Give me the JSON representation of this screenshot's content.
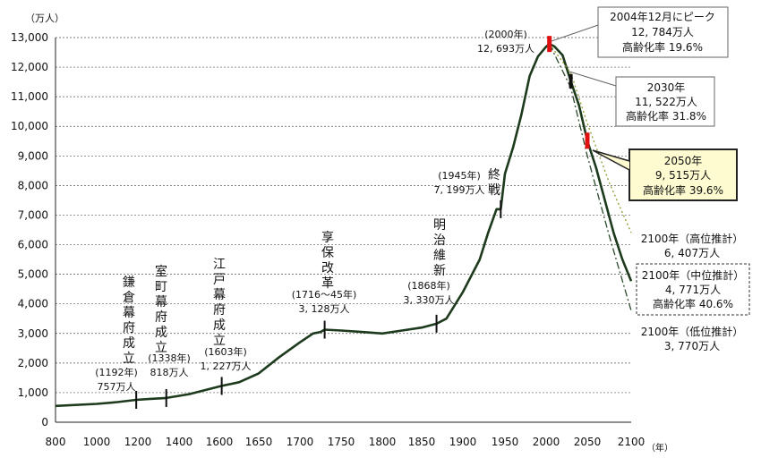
{
  "chart_data": {
    "type": "line",
    "y_unit": "（万人）",
    "x_unit": "（年）",
    "xlim": [
      800,
      2100
    ],
    "ylim": [
      0,
      13000
    ],
    "x_ticks": [
      "800",
      "1000",
      "1200",
      "1400",
      "1600",
      "1650",
      "1700",
      "1750",
      "1800",
      "1850",
      "1900",
      "1950",
      "2000",
      "2050",
      "2100"
    ],
    "y_ticks": [
      "0",
      "1,000",
      "2,000",
      "3,000",
      "4,000",
      "5,000",
      "6,000",
      "7,000",
      "8,000",
      "9,000",
      "10,000",
      "11,000",
      "12,000",
      "13,000"
    ],
    "grid": "horizontal dashed",
    "series": [
      {
        "name": "",
        "style": "solid",
        "color": "#1d3a1d",
        "points": [
          [
            800,
            551
          ],
          [
            1000,
            620
          ],
          [
            1100,
            680
          ],
          [
            1192,
            757
          ],
          [
            1260,
            790
          ],
          [
            1338,
            818
          ],
          [
            1450,
            950
          ],
          [
            1603,
            1227
          ],
          [
            1625,
            1350
          ],
          [
            1650,
            1650
          ],
          [
            1675,
            2200
          ],
          [
            1700,
            2700
          ],
          [
            1716,
            3000
          ],
          [
            1725,
            3050
          ],
          [
            1730,
            3128
          ],
          [
            1750,
            3100
          ],
          [
            1775,
            3050
          ],
          [
            1800,
            3000
          ],
          [
            1825,
            3100
          ],
          [
            1850,
            3200
          ],
          [
            1868,
            3330
          ],
          [
            1880,
            3500
          ],
          [
            1900,
            4400
          ],
          [
            1920,
            5500
          ],
          [
            1930,
            6400
          ],
          [
            1940,
            7200
          ],
          [
            1945,
            7199
          ],
          [
            1950,
            8400
          ],
          [
            1960,
            9300
          ],
          [
            1970,
            10400
          ],
          [
            1980,
            11700
          ],
          [
            1990,
            12360
          ],
          [
            2000,
            12693
          ],
          [
            2004,
            12784
          ],
          [
            2010,
            12700
          ],
          [
            2020,
            12400
          ],
          [
            2030,
            11522
          ],
          [
            2040,
            10700
          ],
          [
            2050,
            9515
          ],
          [
            2060,
            8600
          ],
          [
            2070,
            7500
          ],
          [
            2080,
            6400
          ],
          [
            2090,
            5500
          ],
          [
            2100,
            4771
          ]
        ]
      },
      {
        "name": "",
        "style": "dotted",
        "color": "#8a9a2a",
        "points": [
          [
            2004,
            12784
          ],
          [
            2030,
            11800
          ],
          [
            2050,
            10100
          ],
          [
            2075,
            8100
          ],
          [
            2100,
            6407
          ]
        ]
      },
      {
        "name": "",
        "style": "dash-dot",
        "color": "#2c4a2c",
        "points": [
          [
            2004,
            12784
          ],
          [
            2030,
            11300
          ],
          [
            2050,
            9000
          ],
          [
            2075,
            6300
          ],
          [
            2100,
            3770
          ]
        ]
      }
    ],
    "markers": [
      1192,
      1338,
      1603,
      1730,
      1868,
      1945
    ],
    "red_markers": [
      2004,
      2050
    ],
    "annotations": {
      "kamakura_label": "(1192年)\n757万人",
      "kamakura_event": "鎌倉幕府成立",
      "muromachi_label": "(1338年)\n818万人",
      "muromachi_event": "室町幕府成立",
      "edo_label": "(1603年)\n1, 227万人",
      "edo_event": "江戸幕府成立",
      "kyoho_label": "(1716～45年)\n3, 128万人",
      "kyoho_event": "享保改革",
      "meiji_label": "(1868年)\n3, 330万人",
      "meiji_event": "明治維新",
      "war_label": "(1945年)\n7, 199万人",
      "war_event": "終戦",
      "y2000_label": "(2000年)\n12, 693万人",
      "peak_box": [
        "2004年12月にピーク",
        "12, 784万人",
        "高齢化率 19.6%"
      ],
      "y2030_box": [
        "2030年",
        "11, 522万人",
        "高齢化率 31.8%"
      ],
      "y2050_box": [
        "2050年",
        "9, 515万人",
        "高齢化率 39.6%"
      ],
      "high_proj": [
        "2100年（高位推計）",
        "6, 407万人"
      ],
      "mid_proj": [
        "2100年（中位推計）",
        "4, 771万人",
        "高齢化率 40.6%"
      ],
      "low_proj": [
        "2100年（低位推計）",
        "3, 770万人"
      ]
    }
  }
}
